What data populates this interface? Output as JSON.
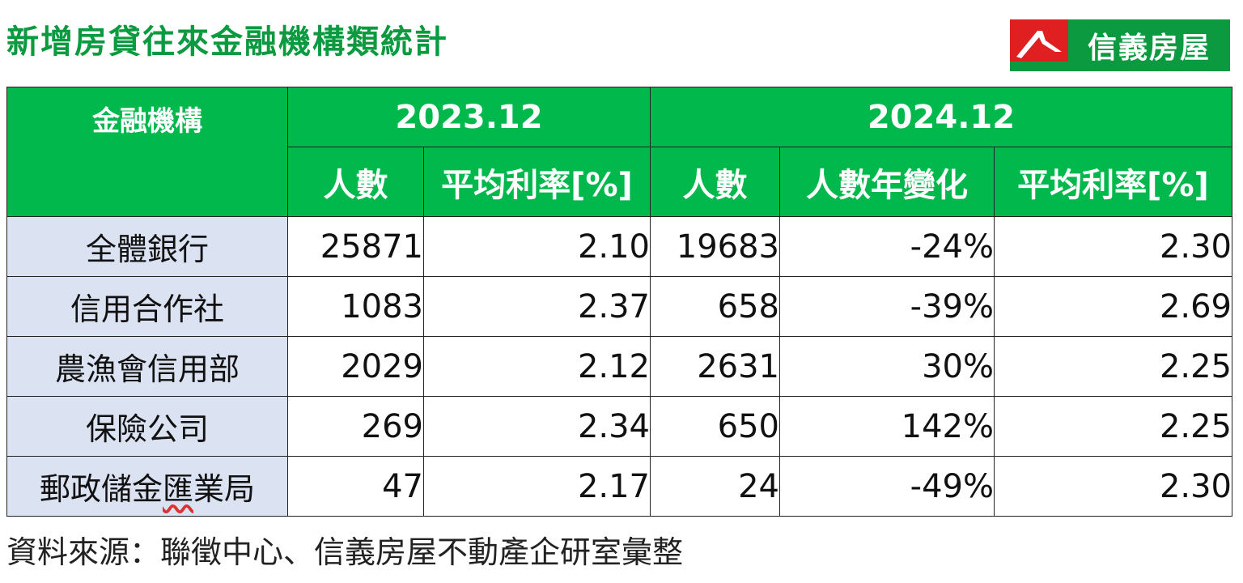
{
  "title": "新增房貸往來金融機構類統計",
  "logo": {
    "text": "信義房屋",
    "brand_green": "#0b9a3f",
    "brand_red": "#e02020"
  },
  "table": {
    "header_institution": "金融機構",
    "periods": [
      "2023.12",
      "2024.12"
    ],
    "subheaders_2023": [
      "人數",
      "平均利率[%]"
    ],
    "subheaders_2024": [
      "人數",
      "人數年變化",
      "平均利率[%]"
    ],
    "rows": [
      {
        "name": "全體銀行",
        "count_2023": "25871",
        "rate_2023": "2.10",
        "count_2024": "19683",
        "yoy": "-24%",
        "rate_2024": "2.30"
      },
      {
        "name": "信用合作社",
        "count_2023": "1083",
        "rate_2023": "2.37",
        "count_2024": "658",
        "yoy": "-39%",
        "rate_2024": "2.69"
      },
      {
        "name": "農漁會信用部",
        "count_2023": "2029",
        "rate_2023": "2.12",
        "count_2024": "2631",
        "yoy": "30%",
        "rate_2024": "2.25"
      },
      {
        "name": "保險公司",
        "count_2023": "269",
        "rate_2023": "2.34",
        "count_2024": "650",
        "yoy": "142%",
        "rate_2024": "2.25"
      },
      {
        "name_prefix": "郵政儲金",
        "name_underlined": "匯",
        "name_suffix": "業局",
        "count_2023": "47",
        "rate_2023": "2.17",
        "count_2024": "24",
        "yoy": "-49%",
        "rate_2024": "2.30"
      }
    ]
  },
  "source": "資料來源：聯徵中心、信義房屋不動產企研室彙整",
  "colors": {
    "header_bg": "#00b84c",
    "label_bg": "#dbe2f1",
    "title": "#0b9a3f"
  }
}
